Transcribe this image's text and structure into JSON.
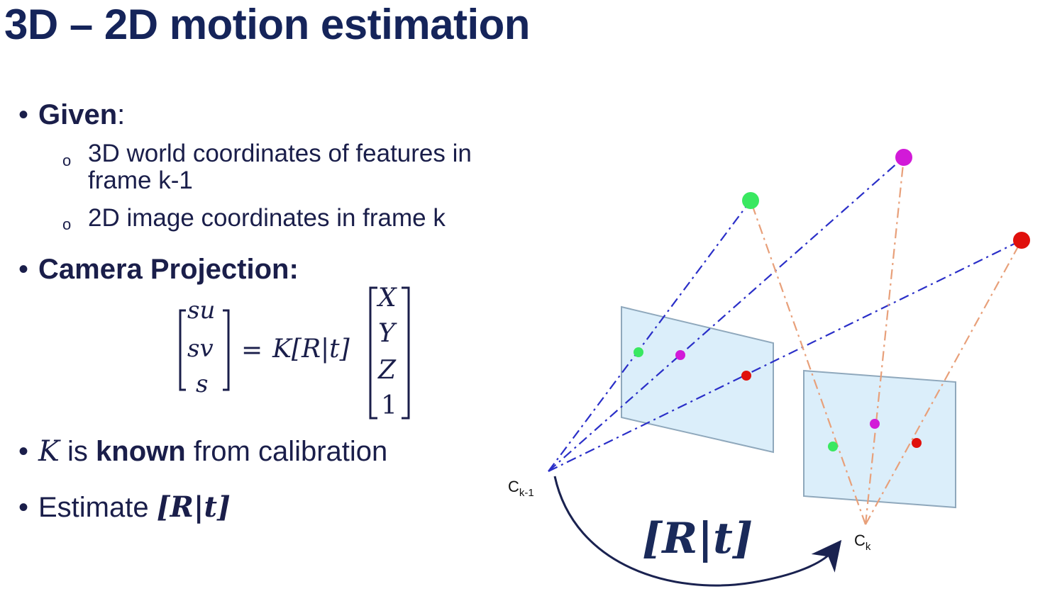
{
  "title": "3D – 2D motion estimation",
  "given": {
    "label": "Given",
    "colon": ":",
    "items": [
      {
        "line1": "3D world coordinates of features in",
        "line2": "frame k-1"
      },
      {
        "line1": "2D image coordinates in frame k"
      }
    ]
  },
  "projection": {
    "label": "Camera Projection:",
    "lhs": [
      "su",
      "sv",
      "s"
    ],
    "equals": "=",
    "operator": "K[R|t]",
    "rhs": [
      "X",
      "Y",
      "Z",
      "1"
    ]
  },
  "known": {
    "symbol": "K",
    "is": "is",
    "known": "known",
    "rest": "from calibration"
  },
  "estimate": {
    "text": "Estimate",
    "expr": "[R|t]"
  },
  "diagram": {
    "cam_prev_label": "C",
    "cam_prev_sub": "k-1",
    "cam_curr_label": "C",
    "cam_curr_sub": "k",
    "motion_label": "[R|t]",
    "colors": {
      "green": "#39e860",
      "magenta": "#d21ad8",
      "red": "#e0100c",
      "blue": "#2a2fc8",
      "orange": "#e8a07a",
      "plane": "#dbeefa"
    }
  }
}
